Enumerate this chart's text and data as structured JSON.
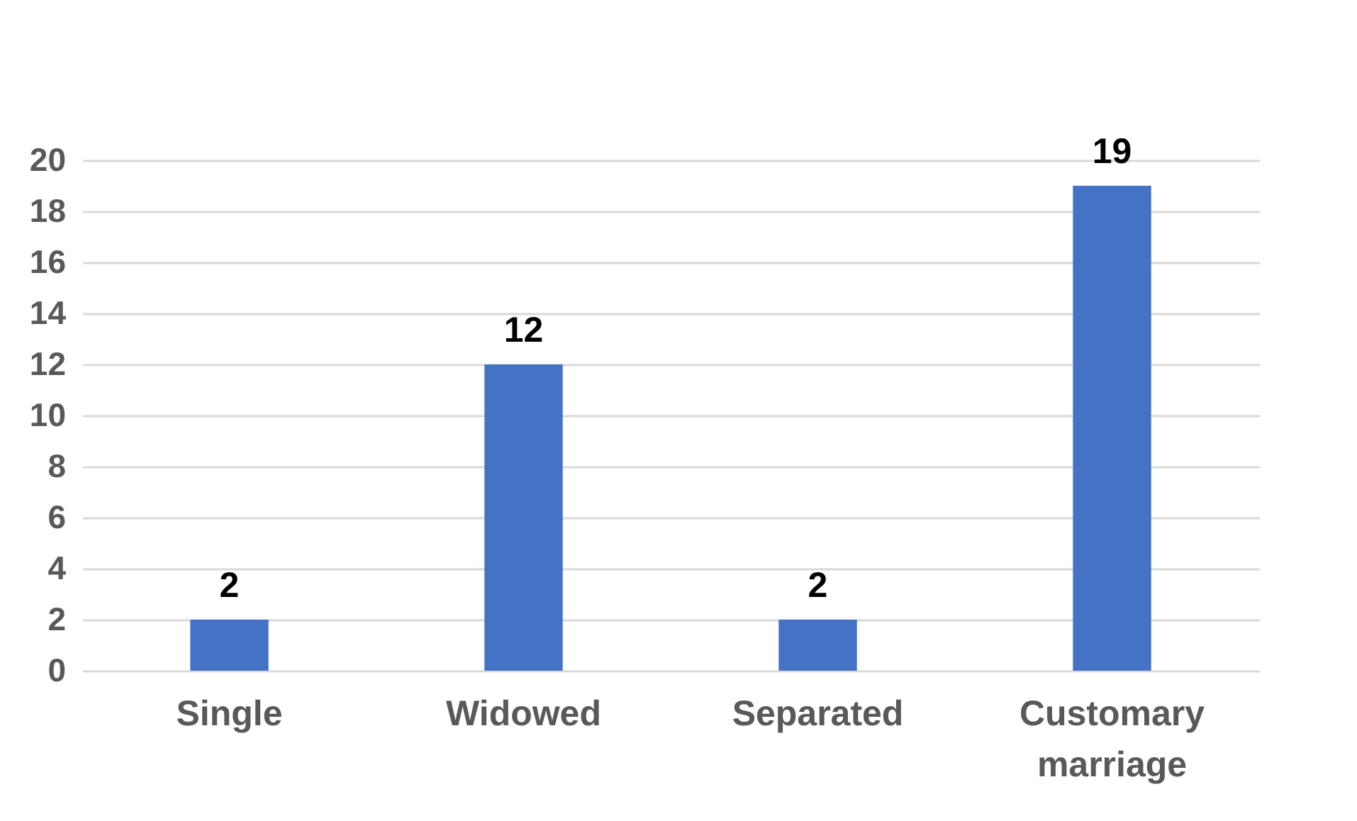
{
  "chart_data": {
    "type": "bar",
    "categories": [
      "Single",
      "Widowed",
      "Separated",
      "Customary marriage"
    ],
    "values": [
      2,
      12,
      2,
      19
    ],
    "color": "#4472c4",
    "ylim": [
      0,
      20
    ],
    "yticks": [
      0,
      2,
      4,
      6,
      8,
      10,
      12,
      14,
      16,
      18,
      20
    ],
    "grid": "y",
    "data_labels": true
  }
}
